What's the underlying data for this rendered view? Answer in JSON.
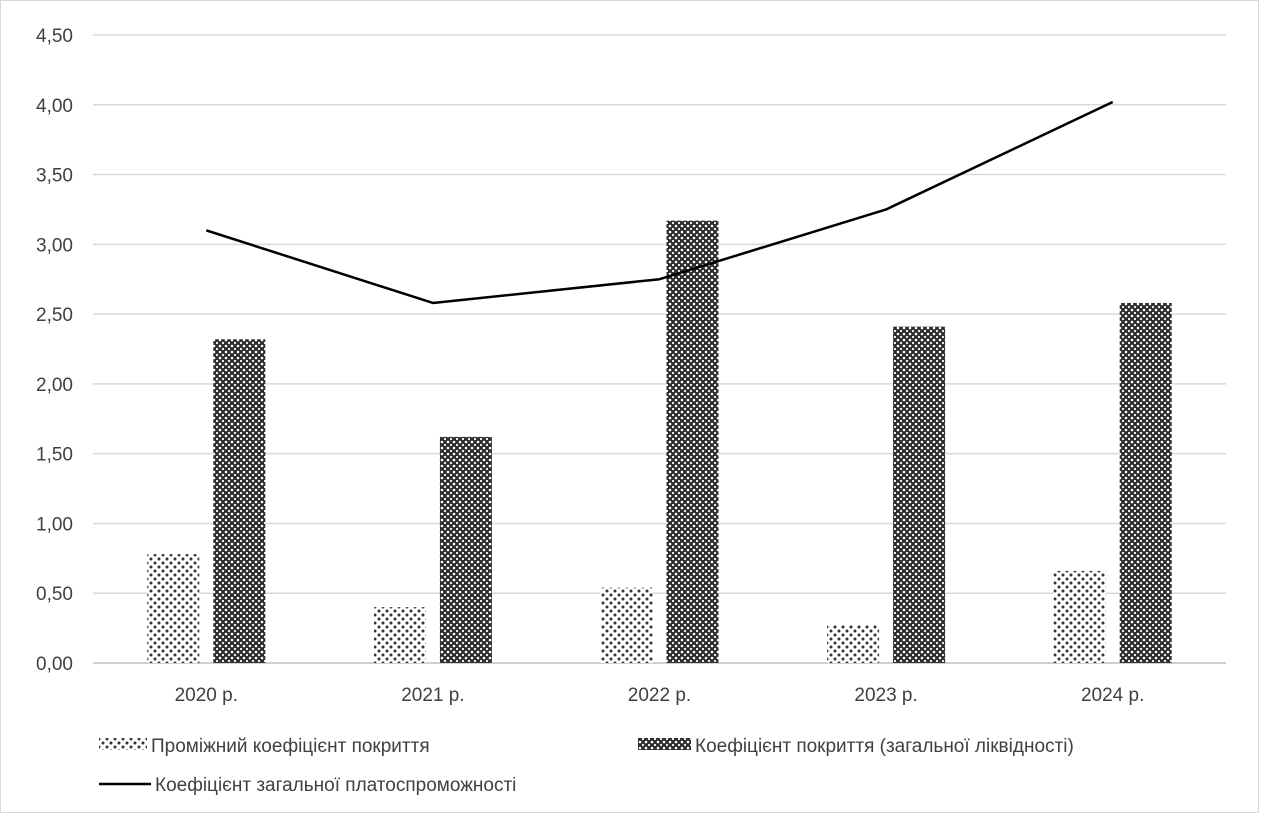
{
  "chart_data": {
    "type": "bar",
    "categories": [
      "2020 р.",
      "2021 р.",
      "2022 р.",
      "2023 р.",
      "2024 р."
    ],
    "series": [
      {
        "name": "Проміжний коефіцієнт покриття",
        "kind": "bar",
        "pattern": "dotted",
        "values": [
          0.78,
          0.4,
          0.54,
          0.27,
          0.66
        ]
      },
      {
        "name": "Коефіцієнт покриття (загальної ліквідності)",
        "kind": "bar",
        "pattern": "crosshatch",
        "values": [
          2.32,
          1.62,
          3.17,
          2.41,
          2.58
        ]
      },
      {
        "name": "Коефіцієнт загальної платоспроможності",
        "kind": "line",
        "values": [
          3.1,
          2.58,
          2.75,
          3.25,
          4.02
        ]
      }
    ],
    "yticks": [
      "0,00",
      "0,50",
      "1,00",
      "1,50",
      "2,00",
      "2,50",
      "3,00",
      "3,50",
      "4,00",
      "4,50"
    ],
    "ylim": [
      0,
      4.5
    ],
    "grid": true,
    "legend": "bottom",
    "colors": {
      "line": "#000000",
      "grid": "#d9d9d9",
      "text": "#404040"
    }
  }
}
